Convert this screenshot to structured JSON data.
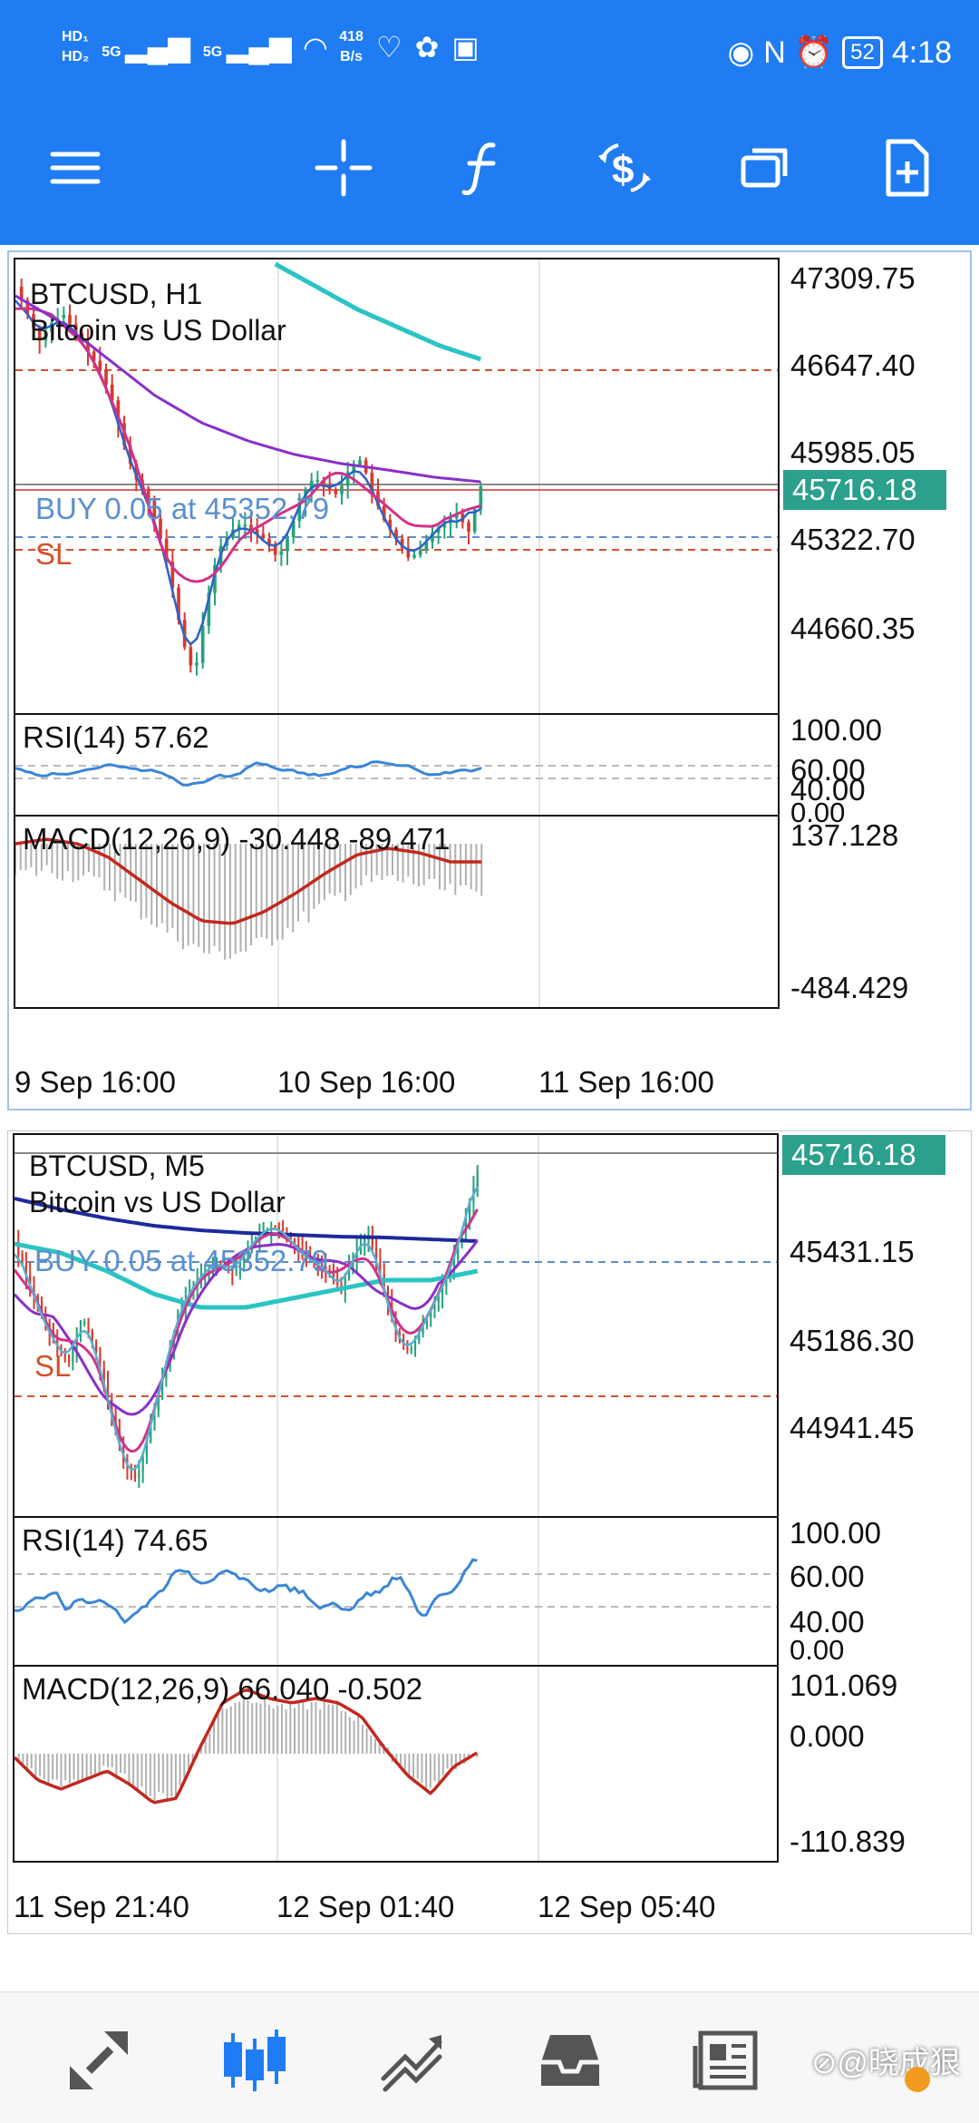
{
  "status_bar": {
    "hd1": "HD₁",
    "hd2": "HD₂",
    "sig1": "5G",
    "sig2": "5G",
    "speed_value": "418",
    "speed_unit": "B/s",
    "nfc": "N",
    "battery": "52",
    "time": "4:18"
  },
  "toolbar": {
    "icons": [
      "menu-icon",
      "crosshair-icon",
      "function-icon",
      "trade-icon",
      "windows-icon",
      "new-document-icon"
    ]
  },
  "chart_h1": {
    "symbol_line": "BTCUSD, H1",
    "description": "Bitcoin vs US Dollar",
    "buy_label": "BUY 0.05 at 45352.79",
    "sl_label": "SL",
    "current_price": "45716.18",
    "price_axis": [
      "47309.75",
      "46647.40",
      "45985.05",
      "45322.70",
      "44660.35"
    ],
    "rsi_title": "RSI(14) 57.62",
    "rsi_axis": [
      "100.00",
      "60.00",
      "40.00",
      "0.00"
    ],
    "macd_title": "MACD(12,26,9) -30.448 -89.471",
    "macd_axis": [
      "137.128",
      "-484.429"
    ],
    "time_axis": [
      "9 Sep 16:00",
      "10 Sep 16:00",
      "11 Sep 16:00"
    ],
    "colors": {
      "bull": "#27a27a",
      "bear": "#d63a2f",
      "ma_slow": "#2bc3c3",
      "ma_mid": "#8a2fc8",
      "ma_fast": "#d0338a",
      "rsi": "#3a86d6",
      "macd_signal": "#c2281f",
      "sl_line": "#d2522b",
      "buy_line": "#5b8fcf"
    }
  },
  "chart_m5": {
    "symbol_line": "BTCUSD, M5",
    "description": "Bitcoin vs US Dollar",
    "buy_label": "BUY 0.05 at 45352.79",
    "sl_label": "SL",
    "current_price": "45716.18",
    "price_axis": [
      "45431.15",
      "45186.30",
      "44941.45"
    ],
    "rsi_title": "RSI(14) 74.65",
    "rsi_axis": [
      "100.00",
      "60.00",
      "40.00",
      "0.00"
    ],
    "macd_title": "MACD(12,26,9) 66.040 -0.502",
    "macd_axis": [
      "101.069",
      "0.000",
      "-110.839"
    ],
    "time_axis": [
      "11 Sep 21:40",
      "12 Sep 01:40",
      "12 Sep 05:40"
    ],
    "colors": {
      "bull": "#27a27a",
      "bear": "#d63a2f",
      "ma_slow": "#1c2a9c",
      "ma_teal": "#2bc3c3",
      "ma_mid": "#8a2fc8",
      "ma_fast": "#d0338a",
      "ma_light": "#5aaed0",
      "rsi": "#3a86d6",
      "macd_signal": "#c2281f"
    }
  },
  "bottom_nav": {
    "icons": [
      "quotes-icon",
      "chart-icon",
      "trade-icon",
      "history-icon",
      "news-icon"
    ],
    "watermark": "⊘@晓成狠"
  }
}
